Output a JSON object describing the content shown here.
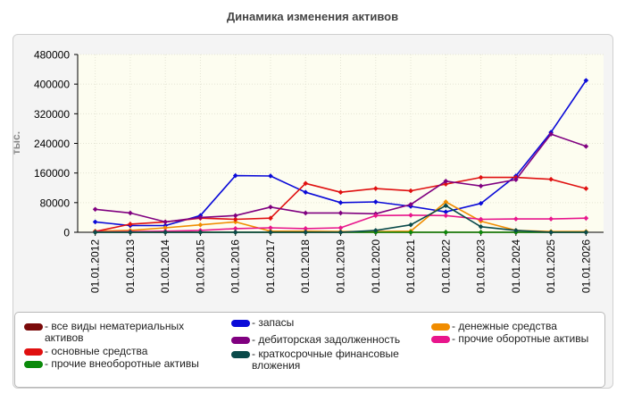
{
  "chart_data": {
    "type": "line",
    "title": "Динамика изменения активов",
    "ylabel": "тыс.",
    "xlabel": "",
    "ylim": [
      0,
      480000
    ],
    "yticks": [
      "0",
      "80000",
      "160000",
      "240000",
      "320000",
      "400000",
      "480000"
    ],
    "ytick_values": [
      0,
      80000,
      160000,
      240000,
      320000,
      400000,
      480000
    ],
    "categories": [
      "01.01.2012",
      "01.01.2013",
      "01.01.2014",
      "01.01.2015",
      "01.01.2016",
      "01.01.2017",
      "01.01.2018",
      "01.01.2019",
      "01.01.2020",
      "01.01.2021",
      "01.01.2022",
      "01.01.2023",
      "01.01.2024",
      "01.01.2025",
      "01.01.2026"
    ],
    "grid": true,
    "legend_position": "bottom",
    "series": [
      {
        "name": "все виды нематериальных активов",
        "color": "#7a0a0a",
        "values": [
          0,
          0,
          0,
          0,
          0,
          0,
          0,
          0,
          0,
          0,
          0,
          0,
          0,
          0,
          0
        ]
      },
      {
        "name": "запасы",
        "color": "#0a0ad8",
        "values": [
          28000,
          18000,
          18000,
          45000,
          153000,
          152000,
          108000,
          80000,
          82000,
          70000,
          55000,
          78000,
          152000,
          270000,
          410000
        ]
      },
      {
        "name": "денежные средства",
        "color": "#f08c00",
        "values": [
          3000,
          5000,
          12000,
          20000,
          28000,
          3000,
          3000,
          2000,
          2000,
          3000,
          82000,
          30000,
          5000,
          2000,
          2000
        ]
      },
      {
        "name": "основные средства",
        "color": "#e01010",
        "values": [
          2000,
          22000,
          28000,
          38000,
          35000,
          38000,
          132000,
          108000,
          118000,
          112000,
          130000,
          148000,
          148000,
          143000,
          118000
        ]
      },
      {
        "name": "дебиторская задолженность",
        "color": "#800080",
        "values": [
          62000,
          52000,
          28000,
          40000,
          45000,
          68000,
          52000,
          52000,
          50000,
          75000,
          138000,
          125000,
          142000,
          265000,
          232000
        ]
      },
      {
        "name": "прочие оборотные активы",
        "color": "#e8158c",
        "values": [
          1000,
          2000,
          3000,
          5000,
          10000,
          12000,
          10000,
          12000,
          45000,
          46000,
          45000,
          35000,
          36000,
          36000,
          38000
        ]
      },
      {
        "name": "прочие внеоборотные активы",
        "color": "#0a8a0a",
        "values": [
          0,
          0,
          0,
          0,
          0,
          0,
          0,
          0,
          0,
          0,
          0,
          0,
          0,
          0,
          0
        ]
      },
      {
        "name": "краткосрочные финансовые вложения",
        "color": "#0a4a4a",
        "values": [
          0,
          0,
          0,
          0,
          0,
          0,
          0,
          0,
          5000,
          20000,
          72000,
          15000,
          5000,
          0,
          0
        ]
      }
    ]
  },
  "legend_layout": [
    {
      "series": 0,
      "col": 0,
      "row": 0
    },
    {
      "series": 3,
      "col": 0,
      "row": 2
    },
    {
      "series": 6,
      "col": 0,
      "row": 3
    },
    {
      "series": 1,
      "col": 1,
      "row": 0
    },
    {
      "series": 4,
      "col": 1,
      "row": 1
    },
    {
      "series": 7,
      "col": 1,
      "row": 2
    },
    {
      "series": 2,
      "col": 2,
      "row": 0
    },
    {
      "series": 5,
      "col": 2,
      "row": 1
    }
  ]
}
